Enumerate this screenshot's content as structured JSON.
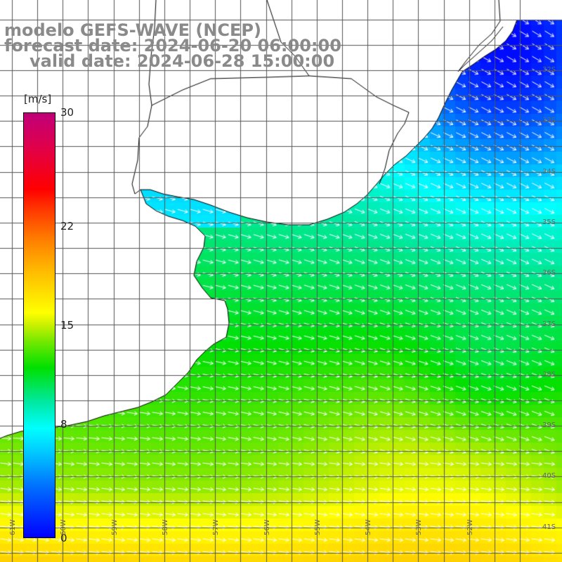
{
  "title": {
    "line1": "modelo GEFS-WAVE (NCEP)",
    "line2": "forecast date: 2024-06-20 06:00:00",
    "line3": "valid date: 2024-06-28 15:00:00"
  },
  "colorbar": {
    "units": "[m/s]",
    "ticks": [
      {
        "value": 30,
        "label": "30"
      },
      {
        "value": 22,
        "label": "22"
      },
      {
        "value": 15,
        "label": "15"
      },
      {
        "value": 8,
        "label": "8"
      },
      {
        "value": 0,
        "label": "0"
      }
    ],
    "range": [
      0,
      30
    ]
  },
  "map": {
    "variable": "wind speed and direction",
    "lon_range": [
      -61.5,
      -51.5
    ],
    "lat_range": [
      -41.3,
      -31.0
    ],
    "lon_labels": [
      "61W",
      "60W",
      "59W",
      "58W",
      "57W",
      "56W",
      "55W",
      "54W",
      "53W",
      "52W"
    ],
    "lat_labels": [
      "32S",
      "33S",
      "34S",
      "35S",
      "36S",
      "37S",
      "38S",
      "39S",
      "40S",
      "41S"
    ],
    "colors": {
      "land": "#ffffff",
      "coast": "#000000",
      "grid": "#555555",
      "arrow": "#ffffff",
      "label": "#666666"
    }
  }
}
